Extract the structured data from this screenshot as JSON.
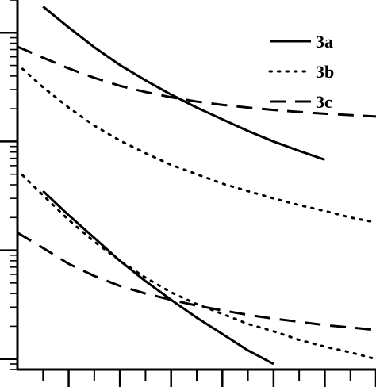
{
  "chart_data": {
    "type": "line",
    "title": "",
    "xlabel": "",
    "ylabel": "",
    "y_scale": "log",
    "xlim": [
      0,
      7
    ],
    "ylim": [
      0.8,
      2000
    ],
    "grid": false,
    "legend_position": "top-right",
    "series": [
      {
        "name": "3a",
        "style": "solid",
        "color": "#000000",
        "groups": [
          {
            "x": [
              0.5,
              1.0,
              1.5,
              2.0,
              2.5,
              3.0,
              3.5,
              4.0,
              4.5,
              5.0,
              5.5,
              6.0
            ],
            "y": [
              1740,
              1120,
              735,
              505,
              365,
              270,
              205,
              160,
              125,
              100,
              82,
              68
            ]
          },
          {
            "x": [
              0.5,
              1.0,
              1.5,
              2.0,
              2.5,
              3.0,
              3.5,
              4.0,
              4.5,
              5.0
            ],
            "y": [
              35,
              21,
              13,
              8,
              5.2,
              3.5,
              2.4,
              1.7,
              1.2,
              0.9
            ]
          }
        ]
      },
      {
        "name": "3b",
        "style": "dotted",
        "color": "#000000",
        "groups": [
          {
            "x": [
              0.1,
              0.5,
              1.0,
              1.5,
              2.0,
              2.5,
              3.0,
              3.5,
              4.0,
              4.5,
              5.0,
              5.5,
              6.0,
              6.5,
              7.0
            ],
            "y": [
              465,
              315,
              205,
              140,
              102,
              78,
              61,
              50,
              41,
              35,
              30,
              26,
              23,
              20,
              18
            ]
          },
          {
            "x": [
              0.1,
              0.5,
              1.0,
              1.5,
              2.0,
              2.5,
              3.0,
              3.5,
              4.0,
              4.5,
              5.0,
              5.5,
              6.0,
              6.5,
              7.0
            ],
            "y": [
              49,
              32,
              19,
              12,
              8,
              5.6,
              4.1,
              3.2,
              2.6,
              2.1,
              1.8,
              1.5,
              1.3,
              1.15,
              1.0
            ]
          }
        ]
      },
      {
        "name": "3c",
        "style": "dashed",
        "color": "#000000",
        "groups": [
          {
            "x": [
              0,
              0.5,
              1.0,
              1.5,
              2.0,
              2.5,
              3.0,
              3.5,
              4.0,
              4.5,
              5.0,
              5.5,
              6.0,
              6.5,
              7.0
            ],
            "y": [
              745,
              590,
              470,
              385,
              325,
              285,
              255,
              233,
              217,
              205,
              195,
              187,
              180,
              175,
              170
            ]
          },
          {
            "x": [
              0,
              0.5,
              1.0,
              1.5,
              2.0,
              2.5,
              3.0,
              3.5,
              4.0,
              4.5,
              5.0,
              5.5,
              6.0,
              6.5,
              7.0
            ],
            "y": [
              14.5,
              10.5,
              7.5,
              5.8,
              4.7,
              4.0,
              3.5,
              3.1,
              2.8,
              2.55,
              2.35,
              2.2,
              2.05,
              1.95,
              1.85
            ]
          }
        ]
      }
    ],
    "x_major_ticks": [
      1,
      2,
      3,
      4,
      5,
      6,
      7
    ],
    "x_minor_ticks": [
      0.5,
      1.5,
      2.5,
      3.5,
      4.5,
      5.5,
      6.5
    ],
    "y_major_ticks": [
      1,
      10,
      100,
      1000
    ]
  }
}
